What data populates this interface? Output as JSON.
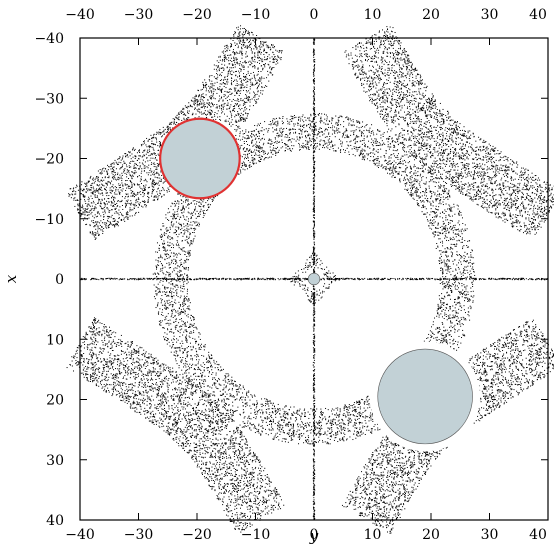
{
  "chart_data": {
    "type": "scatter",
    "title": "",
    "xlabel": "y",
    "ylabel": "x",
    "xlim": [
      -40,
      40
    ],
    "ylim": [
      40,
      -40
    ],
    "y_axis_inverted": true,
    "grid": false,
    "legend": "none",
    "x_ticks": [
      -40,
      -30,
      -20,
      -10,
      0,
      10,
      20,
      30,
      40
    ],
    "y_ticks": [
      -40,
      -30,
      -20,
      -10,
      0,
      10,
      20,
      30,
      40
    ],
    "x_tick_labels": [
      "−40",
      "−30",
      "−20",
      "−10",
      "0",
      "10",
      "20",
      "30",
      "40"
    ],
    "y_tick_labels": [
      "−40",
      "−30",
      "−20",
      "−10",
      "0",
      "10",
      "20",
      "30",
      "40"
    ],
    "colors": {
      "points": "#000000",
      "disk_fill": "#c2d1d6",
      "highlight_edge": "#e03232",
      "plain_edge": "#555555"
    },
    "ring": {
      "center": [
        0,
        0
      ],
      "inner_radius": 21.5,
      "outer_radius": 27.5
    },
    "bands": [
      {
        "name": "upper-left band",
        "path": [
          [
            -40,
            -10.5
          ],
          [
            -35,
            -13.5
          ],
          [
            -28,
            -18
          ],
          [
            -22,
            -22
          ],
          [
            -17,
            -27
          ],
          [
            -13,
            -33
          ],
          [
            -9,
            -40
          ]
        ],
        "width": 4.8
      },
      {
        "name": "upper-right band",
        "path": [
          [
            40,
            -10.5
          ],
          [
            35,
            -13.5
          ],
          [
            28,
            -18
          ],
          [
            22,
            -22
          ],
          [
            17,
            -27
          ],
          [
            13,
            -33
          ],
          [
            9,
            -40
          ]
        ],
        "width": 4.8
      },
      {
        "name": "lower-left band",
        "path": [
          [
            -40,
            10.5
          ],
          [
            -35,
            13.5
          ],
          [
            -28,
            18
          ],
          [
            -22,
            22
          ],
          [
            -17,
            27
          ],
          [
            -13,
            33
          ],
          [
            -9,
            40
          ]
        ],
        "width": 4.8
      },
      {
        "name": "lower-right band",
        "path": [
          [
            40,
            10.5
          ],
          [
            35,
            13.5
          ],
          [
            28,
            18
          ],
          [
            22,
            22
          ],
          [
            17,
            27
          ],
          [
            13,
            33
          ],
          [
            9,
            40
          ]
        ],
        "width": 4.8
      }
    ],
    "cross_lines": {
      "horizontal_at": 0,
      "vertical_at": 0
    },
    "disks": [
      {
        "name": "upper-left disk",
        "center": [
          -19.5,
          -20
        ],
        "radius": 6.8,
        "highlight": true
      },
      {
        "name": "lower-right disk",
        "center": [
          19,
          19.5
        ],
        "radius": 8.1,
        "highlight": false,
        "clear_radius": 9.4
      },
      {
        "name": "center disk",
        "center": [
          0,
          0
        ],
        "radius": 1.0,
        "highlight": false
      }
    ]
  }
}
